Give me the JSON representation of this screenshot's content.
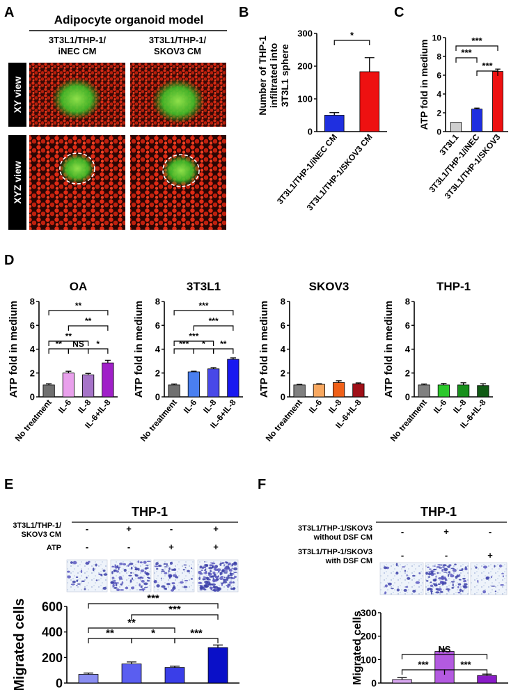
{
  "panelA": {
    "letter": "A",
    "title": "Adipocyte organoid model",
    "col1": [
      "3T3L1/THP-1/",
      "iNEC CM"
    ],
    "col2": [
      "3T3L1/THP-1/",
      "SKOV3 CM"
    ],
    "row1": "XY view",
    "row2": "XYZ view"
  },
  "panelD": {
    "letter": "D"
  },
  "chart_data": [
    {
      "id": "B",
      "type": "bar",
      "ylabel": [
        "Number of THP-1",
        "infiltrated into",
        "3T3L1 sphere"
      ],
      "ylim": [
        0,
        300
      ],
      "yticks": [
        0,
        100,
        200,
        300
      ],
      "categories": [
        "3T3L1/THP-1/iNEC CM",
        "3T3L1/THP-1/SKOV3 CM"
      ],
      "values": [
        50,
        183
      ],
      "errors": [
        8,
        43
      ],
      "colors": [
        "#1f2fe0",
        "#ee1111"
      ],
      "sig": [
        {
          "a": 0,
          "b": 1,
          "label": "*"
        }
      ]
    },
    {
      "id": "C",
      "type": "bar",
      "ylabel": [
        "ATP fold in medium"
      ],
      "ylim": [
        0,
        10
      ],
      "yticks": [
        0,
        2,
        4,
        6,
        8,
        10
      ],
      "categories": [
        "3T3L1",
        "3T3L1/THP-1/iNEC",
        "3T3L1/THP-1/SKOV3"
      ],
      "values": [
        1.0,
        2.4,
        6.4
      ],
      "errors": [
        0,
        0.1,
        0.25
      ],
      "colors": [
        "#cfcfcf",
        "#1f2fe0",
        "#ee1111"
      ],
      "sig": [
        {
          "a": 0,
          "b": 2,
          "label": "***"
        },
        {
          "a": 0,
          "b": 1,
          "label": "***"
        },
        {
          "a": 1,
          "b": 2,
          "label": "***"
        }
      ]
    },
    {
      "id": "D1",
      "type": "bar",
      "title": "OA",
      "ylabel": [
        "ATP fold in medium"
      ],
      "ylim": [
        0,
        8
      ],
      "yticks": [
        0,
        2,
        4,
        6,
        8
      ],
      "categories": [
        "No treatment",
        "IL-6",
        "IL-8",
        "IL-6+IL-8"
      ],
      "values": [
        1.0,
        2.0,
        1.85,
        2.85
      ],
      "errors": [
        0.1,
        0.15,
        0.12,
        0.22
      ],
      "colors": [
        "#707070",
        "#e9a0ec",
        "#a674c8",
        "#a020c8"
      ],
      "sig": [
        {
          "a": 0,
          "b": 3,
          "label": "**"
        },
        {
          "a": 1,
          "b": 3,
          "label": "**"
        },
        {
          "a": 0,
          "b": 2,
          "label": "**"
        },
        {
          "a": 0,
          "b": 1,
          "label": "**"
        },
        {
          "a": 1,
          "b": 2,
          "label": "NS"
        },
        {
          "a": 2,
          "b": 3,
          "label": "*"
        }
      ]
    },
    {
      "id": "D2",
      "type": "bar",
      "title": "3T3L1",
      "ylabel": [
        "ATP fold in medium"
      ],
      "ylim": [
        0,
        8
      ],
      "yticks": [
        0,
        2,
        4,
        6,
        8
      ],
      "categories": [
        "No treatment",
        "IL-6",
        "IL-8",
        "IL-6+IL-8"
      ],
      "values": [
        1.0,
        2.1,
        2.35,
        3.15
      ],
      "errors": [
        0.08,
        0.05,
        0.1,
        0.12
      ],
      "colors": [
        "#707070",
        "#4a7ff0",
        "#4848e8",
        "#1818f0"
      ],
      "sig": [
        {
          "a": 0,
          "b": 3,
          "label": "***"
        },
        {
          "a": 1,
          "b": 3,
          "label": "***"
        },
        {
          "a": 0,
          "b": 2,
          "label": "***"
        },
        {
          "a": 0,
          "b": 1,
          "label": "***"
        },
        {
          "a": 1,
          "b": 2,
          "label": "*"
        },
        {
          "a": 2,
          "b": 3,
          "label": "**"
        }
      ]
    },
    {
      "id": "D3",
      "type": "bar",
      "title": "SKOV3",
      "ylabel": [
        "ATP fold in medium"
      ],
      "ylim": [
        0,
        8
      ],
      "yticks": [
        0,
        2,
        4,
        6,
        8
      ],
      "categories": [
        "No treatment",
        "IL-6",
        "IL-8",
        "IL-6+IL-8"
      ],
      "values": [
        1.0,
        1.05,
        1.2,
        1.1
      ],
      "errors": [
        0.05,
        0.05,
        0.15,
        0.07
      ],
      "colors": [
        "#808080",
        "#f8a860",
        "#f06018",
        "#a01018"
      ],
      "sig": []
    },
    {
      "id": "D4",
      "type": "bar",
      "title": "THP-1",
      "ylabel": [
        "ATP fold in medium"
      ],
      "ylim": [
        0,
        8
      ],
      "yticks": [
        0,
        2,
        4,
        6,
        8
      ],
      "categories": [
        "No treatment",
        "IL-6",
        "IL-8",
        "IL-6+IL-8"
      ],
      "values": [
        1.0,
        1.0,
        1.0,
        0.95
      ],
      "errors": [
        0.08,
        0.12,
        0.18,
        0.15
      ],
      "colors": [
        "#808080",
        "#2cc82c",
        "#18901c",
        "#105a14"
      ],
      "sig": []
    },
    {
      "id": "E",
      "type": "bar",
      "ylabel": [
        "Migrated cells"
      ],
      "ylim": [
        0,
        600
      ],
      "yticks": [
        0,
        200,
        400,
        600
      ],
      "categories": [
        "",
        "",
        "",
        ""
      ],
      "values": [
        68,
        150,
        122,
        278
      ],
      "errors": [
        10,
        15,
        10,
        20
      ],
      "colors": [
        "#8a8ef2",
        "#5a5ef0",
        "#3a3ee8",
        "#0a10c8"
      ],
      "sig": [
        {
          "a": 0,
          "b": 3,
          "label": "***"
        },
        {
          "a": 1,
          "b": 3,
          "label": "***"
        },
        {
          "a": 0,
          "b": 2,
          "label": "**"
        },
        {
          "a": 0,
          "b": 1,
          "label": "**"
        },
        {
          "a": 1,
          "b": 2,
          "label": "*"
        },
        {
          "a": 2,
          "b": 3,
          "label": "***"
        }
      ]
    },
    {
      "id": "F",
      "type": "bar",
      "ylabel": [
        "Migrated cells"
      ],
      "ylim": [
        0,
        300
      ],
      "yticks": [
        0,
        100,
        200,
        300
      ],
      "categories": [
        "",
        "",
        ""
      ],
      "values": [
        15,
        135,
        32
      ],
      "errors": [
        8,
        10,
        6
      ],
      "colors": [
        "#d9a8f0",
        "#b35ae0",
        "#8a1cc8"
      ],
      "sig": [
        {
          "a": 0,
          "b": 2,
          "label": "NS"
        },
        {
          "a": 0,
          "b": 1,
          "label": "***"
        },
        {
          "a": 1,
          "b": 2,
          "label": "***"
        }
      ]
    }
  ],
  "panelE": {
    "letter": "E",
    "header": "THP-1",
    "rows": [
      {
        "label": [
          "3T3L1/THP-1/",
          "SKOV3 CM"
        ],
        "signs": [
          "-",
          "+",
          "-",
          "+"
        ]
      },
      {
        "label": [
          "ATP"
        ],
        "signs": [
          "-",
          "-",
          "+",
          "+"
        ]
      }
    ]
  },
  "panelF": {
    "letter": "F",
    "header": "THP-1",
    "rows": [
      {
        "label": [
          "3T3L1/THP-1/SKOV3",
          "without DSF CM"
        ],
        "signs": [
          "-",
          "+",
          "-"
        ]
      },
      {
        "label": [
          "3T3L1/THP-1/SKOV3",
          "with DSF CM"
        ],
        "signs": [
          "-",
          "-",
          "+"
        ]
      }
    ]
  },
  "letters": {
    "B": "B",
    "C": "C"
  }
}
